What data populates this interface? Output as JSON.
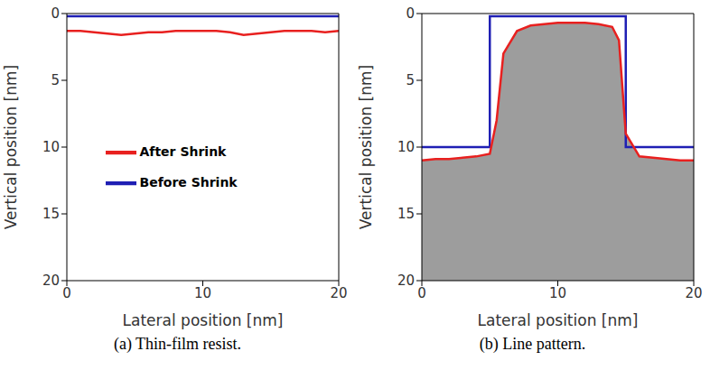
{
  "chart_data": [
    {
      "type": "line",
      "title": "(a) Thin-film resist.",
      "x_label": "Lateral position [nm]",
      "y_label": "Vertical position [nm]",
      "xlim": [
        0,
        20
      ],
      "xticks": [
        0,
        10,
        20
      ],
      "ylim": [
        0,
        20
      ],
      "yticks": [
        0,
        5,
        10,
        15,
        20
      ],
      "legend": "center",
      "series": [
        {
          "name": "Before Shrink",
          "color": "#1f1fb4",
          "x": [
            0,
            20
          ],
          "values": [
            0.2,
            0.2
          ]
        },
        {
          "name": "After Shrink",
          "color": "#e8201f",
          "x": [
            0,
            1,
            2,
            3,
            4,
            5,
            6,
            7,
            8,
            9,
            10,
            11,
            12,
            13,
            14,
            15,
            16,
            17,
            18,
            19,
            20
          ],
          "values": [
            1.3,
            1.3,
            1.4,
            1.5,
            1.6,
            1.5,
            1.4,
            1.4,
            1.3,
            1.3,
            1.3,
            1.3,
            1.4,
            1.6,
            1.5,
            1.4,
            1.3,
            1.3,
            1.3,
            1.4,
            1.3
          ]
        }
      ]
    },
    {
      "type": "line",
      "title": "(b) Line pattern.",
      "x_label": "Lateral position [nm]",
      "y_label": "Vertical position [nm]",
      "xlim": [
        0,
        20
      ],
      "xticks": [
        0,
        10,
        20
      ],
      "ylim": [
        0,
        20
      ],
      "yticks": [
        0,
        5,
        10,
        15,
        20
      ],
      "series": [
        {
          "name": "Before Shrink",
          "color": "#1f1fb4",
          "x": [
            0,
            5,
            5,
            15,
            15,
            20
          ],
          "values": [
            10,
            10,
            0.2,
            0.2,
            10,
            10
          ]
        },
        {
          "name": "After Shrink",
          "color": "#e8201f",
          "x": [
            0,
            1,
            2,
            3,
            4,
            5,
            5.5,
            6,
            7,
            8,
            9,
            10,
            11,
            12,
            13,
            14,
            14.5,
            15,
            16,
            17,
            18,
            19,
            20
          ],
          "values": [
            11,
            10.9,
            10.9,
            10.8,
            10.7,
            10.5,
            8,
            3,
            1.3,
            0.9,
            0.8,
            0.7,
            0.7,
            0.7,
            0.8,
            1,
            2,
            9,
            10.7,
            10.8,
            10.9,
            11,
            11
          ]
        }
      ]
    }
  ]
}
